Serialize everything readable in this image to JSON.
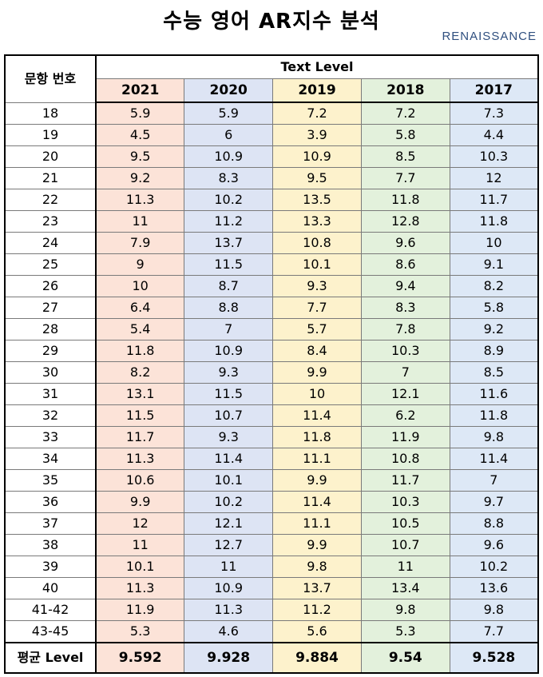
{
  "title": "수능 영어 AR지수 분석",
  "brand": "RENAISSANCE",
  "table": {
    "row_header_label": "문항 번호",
    "group_header": "Text Level",
    "years": [
      "2021",
      "2020",
      "2019",
      "2018",
      "2017"
    ],
    "year_colors": [
      "#fce3d8",
      "#dde4f4",
      "#fdf2cc",
      "#e3f1dc",
      "#dde8f6"
    ],
    "rows": [
      {
        "label": "18",
        "values": [
          "5.9",
          "5.9",
          "7.2",
          "7.2",
          "7.3"
        ]
      },
      {
        "label": "19",
        "values": [
          "4.5",
          "6",
          "3.9",
          "5.8",
          "4.4"
        ]
      },
      {
        "label": "20",
        "values": [
          "9.5",
          "10.9",
          "10.9",
          "8.5",
          "10.3"
        ]
      },
      {
        "label": "21",
        "values": [
          "9.2",
          "8.3",
          "9.5",
          "7.7",
          "12"
        ]
      },
      {
        "label": "22",
        "values": [
          "11.3",
          "10.2",
          "13.5",
          "11.8",
          "11.7"
        ]
      },
      {
        "label": "23",
        "values": [
          "11",
          "11.2",
          "13.3",
          "12.8",
          "11.8"
        ]
      },
      {
        "label": "24",
        "values": [
          "7.9",
          "13.7",
          "10.8",
          "9.6",
          "10"
        ]
      },
      {
        "label": "25",
        "values": [
          "9",
          "11.5",
          "10.1",
          "8.6",
          "9.1"
        ]
      },
      {
        "label": "26",
        "values": [
          "10",
          "8.7",
          "9.3",
          "9.4",
          "8.2"
        ]
      },
      {
        "label": "27",
        "values": [
          "6.4",
          "8.8",
          "7.7",
          "8.3",
          "5.8"
        ]
      },
      {
        "label": "28",
        "values": [
          "5.4",
          "7",
          "5.7",
          "7.8",
          "9.2"
        ]
      },
      {
        "label": "29",
        "values": [
          "11.8",
          "10.9",
          "8.4",
          "10.3",
          "8.9"
        ]
      },
      {
        "label": "30",
        "values": [
          "8.2",
          "9.3",
          "9.9",
          "7",
          "8.5"
        ]
      },
      {
        "label": "31",
        "values": [
          "13.1",
          "11.5",
          "10",
          "12.1",
          "11.6"
        ]
      },
      {
        "label": "32",
        "values": [
          "11.5",
          "10.7",
          "11.4",
          "6.2",
          "11.8"
        ]
      },
      {
        "label": "33",
        "values": [
          "11.7",
          "9.3",
          "11.8",
          "11.9",
          "9.8"
        ]
      },
      {
        "label": "34",
        "values": [
          "11.3",
          "11.4",
          "11.1",
          "10.8",
          "11.4"
        ]
      },
      {
        "label": "35",
        "values": [
          "10.6",
          "10.1",
          "9.9",
          "11.7",
          "7"
        ]
      },
      {
        "label": "36",
        "values": [
          "9.9",
          "10.2",
          "11.4",
          "10.3",
          "9.7"
        ]
      },
      {
        "label": "37",
        "values": [
          "12",
          "12.1",
          "11.1",
          "10.5",
          "8.8"
        ]
      },
      {
        "label": "38",
        "values": [
          "11",
          "12.7",
          "9.9",
          "10.7",
          "9.6"
        ]
      },
      {
        "label": "39",
        "values": [
          "10.1",
          "11",
          "9.8",
          "11",
          "10.2"
        ]
      },
      {
        "label": "40",
        "values": [
          "11.3",
          "10.9",
          "13.7",
          "13.4",
          "13.6"
        ]
      },
      {
        "label": "41-42",
        "values": [
          "11.9",
          "11.3",
          "11.2",
          "9.8",
          "9.8"
        ]
      },
      {
        "label": "43-45",
        "values": [
          "5.3",
          "4.6",
          "5.6",
          "5.3",
          "7.7"
        ]
      }
    ],
    "average": {
      "label": "평균 Level",
      "values": [
        "9.592",
        "9.928",
        "9.884",
        "9.54",
        "9.528"
      ]
    }
  }
}
